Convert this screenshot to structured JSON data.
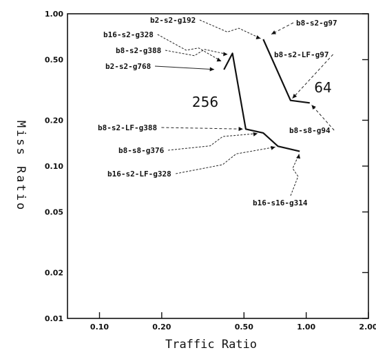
{
  "chart_data": {
    "type": "line",
    "title": "",
    "xlabel": "Traffic Ratio",
    "ylabel": "Miss Ratio",
    "xscale": "log",
    "yscale": "log",
    "xlim": [
      0.07,
      2.0
    ],
    "ylim": [
      0.01,
      1.0
    ],
    "x_ticks": [
      {
        "value": 0.1,
        "label": "0.10"
      },
      {
        "value": 0.2,
        "label": "0.20"
      },
      {
        "value": 0.5,
        "label": "0.50"
      },
      {
        "value": 1.0,
        "label": "1.00"
      },
      {
        "value": 2.0,
        "label": "2.00"
      }
    ],
    "y_ticks": [
      {
        "value": 1.0,
        "label": "1.00"
      },
      {
        "value": 0.5,
        "label": "0.50"
      },
      {
        "value": 0.2,
        "label": "0.20"
      },
      {
        "value": 0.1,
        "label": "0.10"
      },
      {
        "value": 0.05,
        "label": "0.05"
      },
      {
        "value": 0.02,
        "label": "0.02"
      },
      {
        "value": 0.01,
        "label": "0.01"
      }
    ],
    "grid": false,
    "series": [
      {
        "curve_label": "256",
        "points": [
          {
            "x": 0.37,
            "y": 0.43,
            "label": "b2-s2-g768"
          },
          {
            "x": 0.43,
            "y": 0.54,
            "label": "b8-s2-g388"
          },
          {
            "x": 0.4,
            "y": 0.48,
            "label": "b16-s2-g328"
          },
          {
            "x": 0.51,
            "y": 0.175,
            "label": "b8-s2-LF-g388"
          },
          {
            "x": 0.6,
            "y": 0.165,
            "label": "b8-s8-g376"
          },
          {
            "x": 0.73,
            "y": 0.135,
            "label": "b16-s2-LF-g328"
          },
          {
            "x": 0.93,
            "y": 0.125,
            "label": "b16-s16-g314"
          }
        ]
      },
      {
        "curve_label": "64",
        "points": [
          {
            "x": 0.62,
            "y": 0.68,
            "label": "b2-s2-g192"
          },
          {
            "x": 0.66,
            "y": 0.72,
            "label": "b8-s2-g97"
          },
          {
            "x": 0.84,
            "y": 0.27,
            "label": "b8-s2-LF-g97"
          },
          {
            "x": 1.04,
            "y": 0.26,
            "label": "b8-s8-g94"
          }
        ]
      }
    ],
    "curve_paths": [
      {
        "name": "256",
        "x": [
          0.4,
          0.44,
          0.51,
          0.62,
          0.73,
          0.93
        ],
        "y": [
          0.43,
          0.55,
          0.175,
          0.165,
          0.135,
          0.125
        ]
      },
      {
        "name": "64",
        "x": [
          0.62,
          0.84,
          1.04
        ],
        "y": [
          0.68,
          0.27,
          0.26
        ]
      }
    ]
  }
}
